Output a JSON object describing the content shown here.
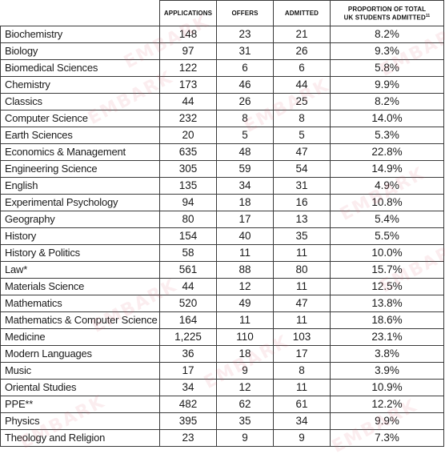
{
  "headers": {
    "applications": "APPLICATIONS",
    "offers": "OFFERS",
    "admitted": "ADMITTED",
    "proportion_line1": "PROPORTION OF TOTAL",
    "proportion_line2": "UK STUDENTS ADMITTED",
    "proportion_sup": "11"
  },
  "watermark": "EMBARK",
  "rows": [
    {
      "subject": "Biochemistry",
      "applications": "148",
      "offers": "23",
      "admitted": "21",
      "proportion": "8.2%"
    },
    {
      "subject": "Biology",
      "applications": "97",
      "offers": "31",
      "admitted": "26",
      "proportion": "9.3%"
    },
    {
      "subject": "Biomedical Sciences",
      "applications": "122",
      "offers": "6",
      "admitted": "6",
      "proportion": "5.8%"
    },
    {
      "subject": "Chemistry",
      "applications": "173",
      "offers": "46",
      "admitted": "44",
      "proportion": "9.9%"
    },
    {
      "subject": "Classics",
      "applications": "44",
      "offers": "26",
      "admitted": "25",
      "proportion": "8.2%"
    },
    {
      "subject": "Computer Science",
      "applications": "232",
      "offers": "8",
      "admitted": "8",
      "proportion": "14.0%"
    },
    {
      "subject": "Earth Sciences",
      "applications": "20",
      "offers": "5",
      "admitted": "5",
      "proportion": "5.3%"
    },
    {
      "subject": "Economics & Management",
      "applications": "635",
      "offers": "48",
      "admitted": "47",
      "proportion": "22.8%"
    },
    {
      "subject": "Engineering Science",
      "applications": "305",
      "offers": "59",
      "admitted": "54",
      "proportion": "14.9%"
    },
    {
      "subject": "English",
      "applications": "135",
      "offers": "34",
      "admitted": "31",
      "proportion": "4.9%"
    },
    {
      "subject": "Experimental Psychology",
      "applications": "94",
      "offers": "18",
      "admitted": "16",
      "proportion": "10.8%"
    },
    {
      "subject": "Geography",
      "applications": "80",
      "offers": "17",
      "admitted": "13",
      "proportion": "5.4%"
    },
    {
      "subject": "History",
      "applications": "154",
      "offers": "40",
      "admitted": "35",
      "proportion": "5.5%"
    },
    {
      "subject": "History & Politics",
      "applications": "58",
      "offers": "11",
      "admitted": "11",
      "proportion": "10.0%"
    },
    {
      "subject": "Law*",
      "applications": "561",
      "offers": "88",
      "admitted": "80",
      "proportion": "15.7%"
    },
    {
      "subject": "Materials Science",
      "applications": "44",
      "offers": "12",
      "admitted": "11",
      "proportion": "12.5%"
    },
    {
      "subject": "Mathematics",
      "applications": "520",
      "offers": "49",
      "admitted": "47",
      "proportion": "13.8%"
    },
    {
      "subject": "Mathematics & Computer Science",
      "applications": "164",
      "offers": "11",
      "admitted": "11",
      "proportion": "18.6%"
    },
    {
      "subject": "Medicine",
      "applications": "1,225",
      "offers": "110",
      "admitted": "103",
      "proportion": "23.1%"
    },
    {
      "subject": "Modern Languages",
      "applications": "36",
      "offers": "18",
      "admitted": "17",
      "proportion": "3.8%"
    },
    {
      "subject": "Music",
      "applications": "17",
      "offers": "9",
      "admitted": "8",
      "proportion": "3.9%"
    },
    {
      "subject": "Oriental Studies",
      "applications": "34",
      "offers": "12",
      "admitted": "11",
      "proportion": "10.9%"
    },
    {
      "subject": "PPE**",
      "applications": "482",
      "offers": "62",
      "admitted": "61",
      "proportion": "12.2%"
    },
    {
      "subject": "Physics",
      "applications": "395",
      "offers": "35",
      "admitted": "34",
      "proportion": "9.9%"
    },
    {
      "subject": "Theology and Religion",
      "applications": "23",
      "offers": "9",
      "admitted": "9",
      "proportion": "7.3%"
    }
  ]
}
